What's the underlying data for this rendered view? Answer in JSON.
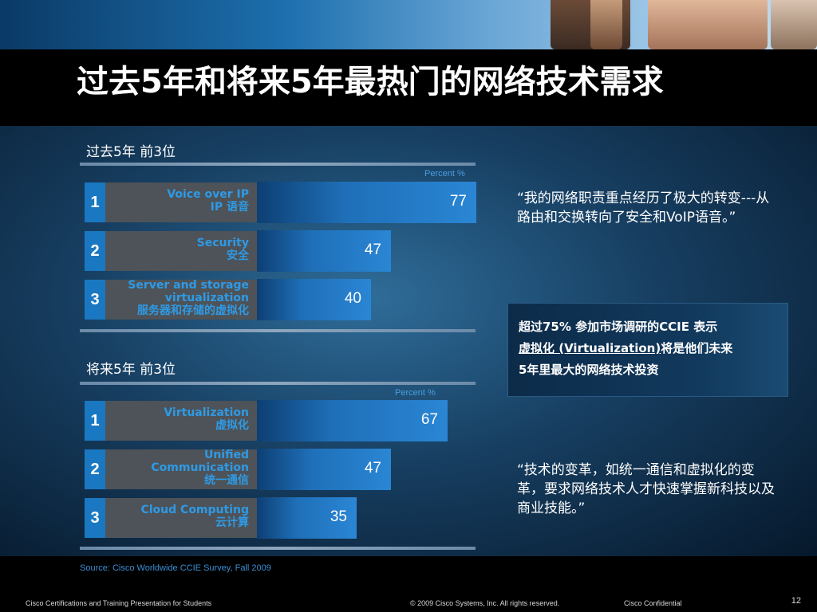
{
  "slide": {
    "title": "过去5年和将来5年最热门的网络技术需求",
    "source": "Source: Cisco Worldwide CCIE Survey, Fall 2009",
    "footer_left": "Cisco Certifications and Training Presentation for Students",
    "footer_copyright": "© 2009 Cisco Systems, Inc. All rights reserved.",
    "footer_confidential": "Cisco Confidential",
    "page_number": "12"
  },
  "quotes": {
    "top": "“我的网络职责重点经历了极大的转变---从路由和交换转向了安全和VoIP语音。”",
    "bottom": "“技术的变革，如统一通信和虚拟化的变革，要求网络技术人才快速掌握新科技以及商业技能。”"
  },
  "infobox": {
    "line1": "超过75% 参加市场调研的CCIE 表示",
    "line2_underlined": "虚拟化 (Virtualization)",
    "line2_rest": "将是他们未来",
    "line3": "5年里最大的网络技术投资"
  },
  "colors": {
    "accent_blue": "#1a78c2",
    "label_blue": "#2e9ae6",
    "category_gray": "#4d5358"
  },
  "chart_data": [
    {
      "type": "bar",
      "title": "过去5年 前3位",
      "unit_label": "Percent %",
      "ranks": [
        "1",
        "2",
        "3"
      ],
      "categories": [
        [
          "Voice over IP",
          "IP 语音"
        ],
        [
          "Security",
          "安全"
        ],
        [
          "Server and storage",
          "virtualization",
          "服务器和存储的虚拟化"
        ]
      ],
      "values": [
        77,
        47,
        40
      ],
      "xlim": [
        0,
        100
      ]
    },
    {
      "type": "bar",
      "title": "将来5年 前3位",
      "unit_label": "Percent %",
      "ranks": [
        "1",
        "2",
        "3"
      ],
      "categories": [
        [
          "Virtualization",
          "虚拟化"
        ],
        [
          "Unified",
          "Communication",
          "统一通信"
        ],
        [
          "Cloud Computing",
          "云计算"
        ]
      ],
      "values": [
        67,
        47,
        35
      ],
      "xlim": [
        0,
        100
      ]
    }
  ]
}
